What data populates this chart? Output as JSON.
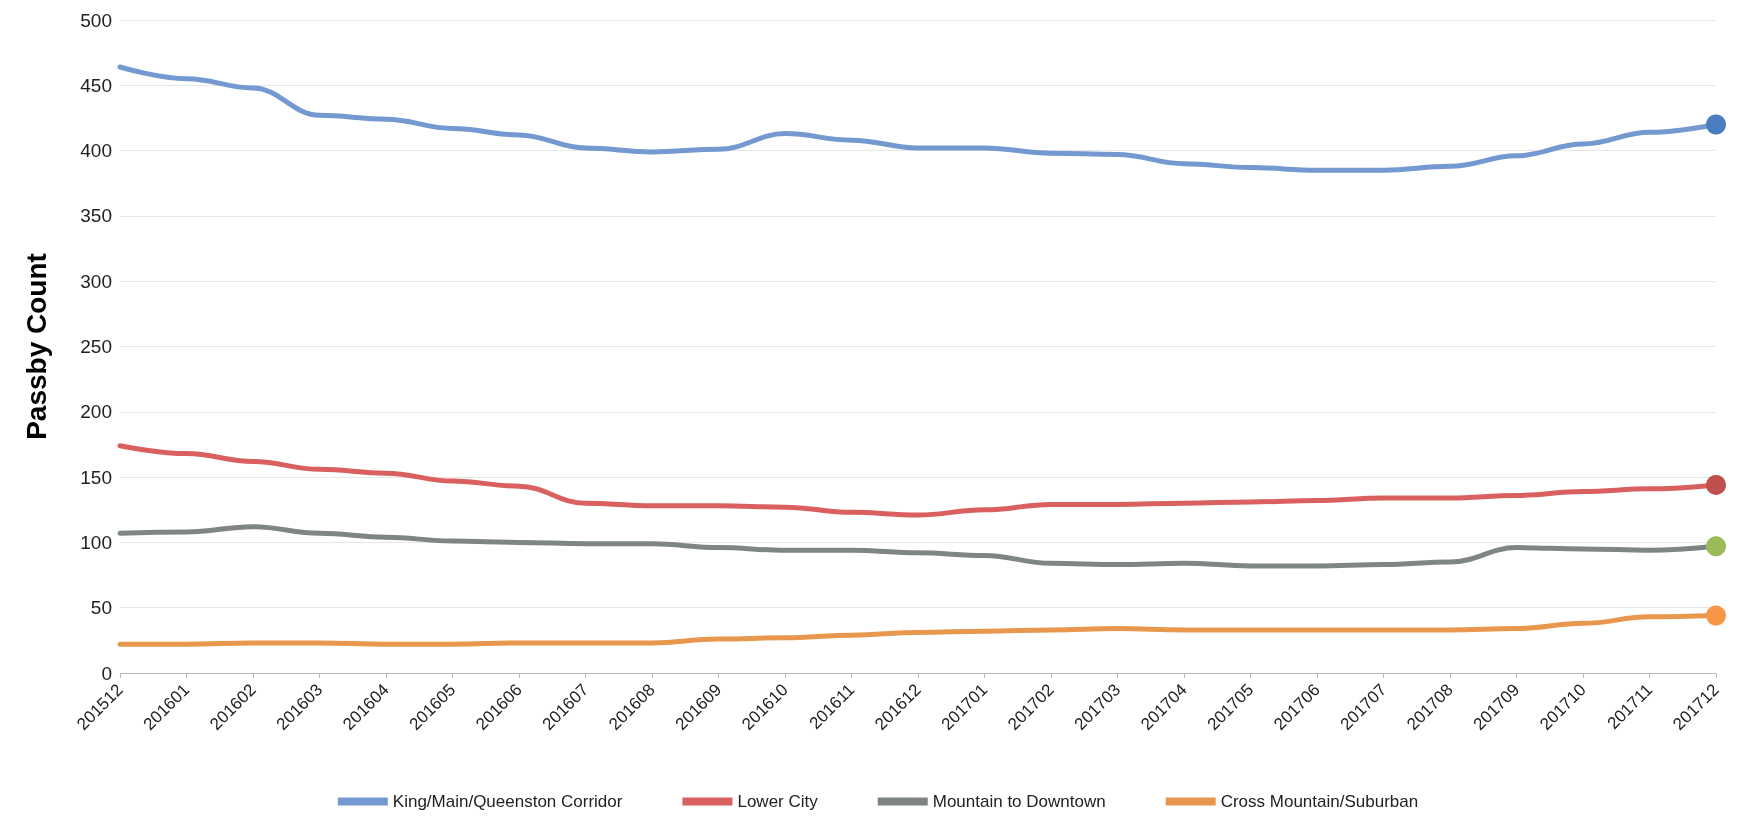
{
  "chart_data": {
    "type": "line",
    "ylabel": "Passby Count",
    "categories": [
      "201512",
      "201601",
      "201602",
      "201603",
      "201604",
      "201605",
      "201606",
      "201607",
      "201608",
      "201609",
      "201610",
      "201611",
      "201612",
      "201701",
      "201702",
      "201703",
      "201704",
      "201705",
      "201706",
      "201707",
      "201708",
      "201709",
      "201710",
      "201711",
      "201712"
    ],
    "series": [
      {
        "name": "King/Main/Queenston Corridor",
        "color": "#7399d0",
        "values": [
          464,
          455,
          448,
          427,
          424,
          417,
          412,
          402,
          399,
          401,
          413,
          408,
          402,
          402,
          398,
          397,
          390,
          387,
          385,
          385,
          388,
          396,
          405,
          414,
          420
        ]
      },
      {
        "name": "Lower City",
        "color": "#d9605e",
        "values": [
          174,
          168,
          162,
          156,
          153,
          147,
          143,
          130,
          128,
          128,
          127,
          123,
          121,
          125,
          129,
          129,
          130,
          131,
          132,
          134,
          134,
          136,
          139,
          141,
          144
        ]
      },
      {
        "name": "Mountain to Downtown",
        "color": "#7f8582",
        "values": [
          107,
          108,
          112,
          107,
          104,
          101,
          100,
          99,
          99,
          96,
          94,
          94,
          92,
          90,
          84,
          83,
          84,
          82,
          82,
          83,
          85,
          96,
          95,
          94,
          97
        ]
      },
      {
        "name": "Cross Mountain/Suburban",
        "color": "#e8984e",
        "values": [
          22,
          22,
          23,
          23,
          22,
          22,
          23,
          23,
          23,
          26,
          27,
          29,
          31,
          32,
          33,
          34,
          33,
          33,
          33,
          33,
          33,
          34,
          38,
          43,
          44
        ]
      },
      {
        "type": "scatter",
        "marker": "circle",
        "x": [
          "201712",
          "201712",
          "201712",
          "201712"
        ],
        "values": [
          420,
          144,
          97,
          44
        ],
        "colors": [
          "#4a7ec0",
          "#c0504d",
          "#9bbb59",
          "#f79646"
        ]
      }
    ],
    "ylim": [
      0,
      500
    ],
    "yticks": [
      0,
      50,
      100,
      150,
      200,
      250,
      300,
      350,
      400,
      450,
      500
    ],
    "grid": "y",
    "legend": "bottom",
    "marker": "none",
    "line_style": "solid"
  }
}
